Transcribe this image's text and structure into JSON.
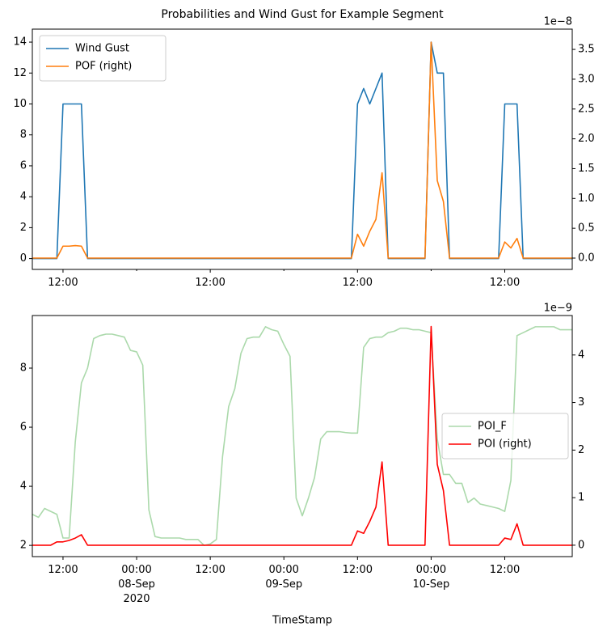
{
  "chart_data": [
    {
      "type": "line",
      "title": "Probabilities and Wind Gust for Example Segment",
      "x": [
        "2020-09-07 07:00",
        "2020-09-07 08:00",
        "2020-09-07 09:00",
        "2020-09-07 10:00",
        "2020-09-07 11:00",
        "2020-09-07 12:00",
        "2020-09-07 13:00",
        "2020-09-07 14:00",
        "2020-09-07 15:00",
        "2020-09-07 16:00",
        "2020-09-07 17:00",
        "2020-09-07 18:00",
        "2020-09-07 19:00",
        "2020-09-07 20:00",
        "2020-09-07 21:00",
        "2020-09-07 22:00",
        "2020-09-07 23:00",
        "2020-09-08 00:00",
        "2020-09-08 01:00",
        "2020-09-08 02:00",
        "2020-09-08 03:00",
        "2020-09-08 04:00",
        "2020-09-08 05:00",
        "2020-09-08 06:00",
        "2020-09-08 07:00",
        "2020-09-08 08:00",
        "2020-09-08 09:00",
        "2020-09-08 10:00",
        "2020-09-08 11:00",
        "2020-09-08 12:00",
        "2020-09-08 13:00",
        "2020-09-08 14:00",
        "2020-09-08 15:00",
        "2020-09-08 16:00",
        "2020-09-08 17:00",
        "2020-09-08 18:00",
        "2020-09-08 19:00",
        "2020-09-08 20:00",
        "2020-09-08 21:00",
        "2020-09-08 22:00",
        "2020-09-08 23:00",
        "2020-09-09 00:00",
        "2020-09-09 01:00",
        "2020-09-09 02:00",
        "2020-09-09 03:00",
        "2020-09-09 04:00",
        "2020-09-09 05:00",
        "2020-09-09 06:00",
        "2020-09-09 07:00",
        "2020-09-09 08:00",
        "2020-09-09 09:00",
        "2020-09-09 10:00",
        "2020-09-09 11:00",
        "2020-09-09 12:00",
        "2020-09-09 13:00",
        "2020-09-09 14:00",
        "2020-09-09 15:00",
        "2020-09-09 16:00",
        "2020-09-09 17:00",
        "2020-09-09 18:00",
        "2020-09-09 19:00",
        "2020-09-09 20:00",
        "2020-09-09 21:00",
        "2020-09-09 22:00",
        "2020-09-09 23:00",
        "2020-09-10 00:00",
        "2020-09-10 01:00",
        "2020-09-10 02:00",
        "2020-09-10 03:00",
        "2020-09-10 04:00",
        "2020-09-10 05:00",
        "2020-09-10 06:00",
        "2020-09-10 07:00",
        "2020-09-10 08:00",
        "2020-09-10 09:00",
        "2020-09-10 10:00",
        "2020-09-10 11:00",
        "2020-09-10 12:00",
        "2020-09-10 13:00",
        "2020-09-10 14:00",
        "2020-09-10 15:00",
        "2020-09-10 16:00",
        "2020-09-10 17:00",
        "2020-09-10 18:00",
        "2020-09-10 19:00",
        "2020-09-10 20:00",
        "2020-09-10 21:00",
        "2020-09-10 22:00",
        "2020-09-10 23:00"
      ],
      "series": [
        {
          "name": "Wind Gust",
          "color": "#1f77b4",
          "axis": "y",
          "values": [
            0,
            0,
            0,
            0,
            0,
            10,
            10,
            10,
            10,
            0,
            0,
            0,
            0,
            0,
            0,
            0,
            0,
            0,
            0,
            0,
            0,
            0,
            0,
            0,
            0,
            0,
            0,
            0,
            0,
            0,
            0,
            0,
            0,
            0,
            0,
            0,
            0,
            0,
            0,
            0,
            0,
            0,
            0,
            0,
            0,
            0,
            0,
            0,
            0,
            0,
            0,
            0,
            0,
            10,
            11,
            10,
            11,
            12,
            0,
            0,
            0,
            0,
            0,
            0,
            0,
            14,
            12,
            12,
            0,
            0,
            0,
            0,
            0,
            0,
            0,
            0,
            0,
            10,
            10,
            10,
            0,
            0,
            0,
            0,
            0,
            0,
            0,
            0,
            0
          ]
        },
        {
          "name": "POF (right)",
          "color": "#ff7f0e",
          "axis": "y2",
          "values": [
            0,
            0,
            0,
            0,
            0,
            0.2,
            0.2,
            0.21,
            0.2,
            0,
            0,
            0,
            0,
            0,
            0,
            0,
            0,
            0,
            0,
            0,
            0,
            0,
            0,
            0,
            0,
            0,
            0,
            0,
            0,
            0,
            0,
            0,
            0,
            0,
            0,
            0,
            0,
            0,
            0,
            0,
            0,
            0,
            0,
            0,
            0,
            0,
            0,
            0,
            0,
            0,
            0,
            0,
            0,
            0.4,
            0.2,
            0.45,
            0.65,
            1.43,
            0,
            0,
            0,
            0,
            0,
            0,
            0,
            3.62,
            1.3,
            0.95,
            0,
            0,
            0,
            0,
            0,
            0,
            0,
            0,
            0,
            0.27,
            0.17,
            0.33,
            0,
            0,
            0,
            0,
            0,
            0,
            0,
            0,
            0
          ]
        }
      ],
      "xlim": [
        "2020-09-07 07:00",
        "2020-09-10 23:00"
      ],
      "xticks": [
        {
          "value": "2020-09-07 12:00",
          "label": "12:00"
        },
        {
          "value": "2020-09-08 12:00",
          "label": "12:00"
        },
        {
          "value": "2020-09-09 12:00",
          "label": "12:00"
        },
        {
          "value": "2020-09-10 12:00",
          "label": "12:00"
        }
      ],
      "xticks_minor": [
        "2020-09-08 00:00",
        "2020-09-09 00:00",
        "2020-09-10 00:00"
      ],
      "ylim": [
        -0.7,
        14.84
      ],
      "yticks": [
        0,
        2,
        4,
        6,
        8,
        10,
        12,
        14
      ],
      "y2lim": [
        -0.19,
        3.84
      ],
      "y2ticks": [
        {
          "value": 0,
          "label": "0.0"
        },
        0.5,
        {
          "value": 1,
          "label": "1.0"
        },
        1.5,
        {
          "value": 2,
          "label": "2.0"
        },
        2.5,
        {
          "value": 3,
          "label": "3.0"
        },
        3.5
      ],
      "y2_offset_label": "1e−8",
      "legend": "upper left"
    },
    {
      "type": "line",
      "xlabel": "TimeStamp",
      "x": [
        "2020-09-07 07:00",
        "2020-09-07 08:00",
        "2020-09-07 09:00",
        "2020-09-07 10:00",
        "2020-09-07 11:00",
        "2020-09-07 12:00",
        "2020-09-07 13:00",
        "2020-09-07 14:00",
        "2020-09-07 15:00",
        "2020-09-07 16:00",
        "2020-09-07 17:00",
        "2020-09-07 18:00",
        "2020-09-07 19:00",
        "2020-09-07 20:00",
        "2020-09-07 21:00",
        "2020-09-07 22:00",
        "2020-09-07 23:00",
        "2020-09-08 00:00",
        "2020-09-08 01:00",
        "2020-09-08 02:00",
        "2020-09-08 03:00",
        "2020-09-08 04:00",
        "2020-09-08 05:00",
        "2020-09-08 06:00",
        "2020-09-08 07:00",
        "2020-09-08 08:00",
        "2020-09-08 09:00",
        "2020-09-08 10:00",
        "2020-09-08 11:00",
        "2020-09-08 12:00",
        "2020-09-08 13:00",
        "2020-09-08 14:00",
        "2020-09-08 15:00",
        "2020-09-08 16:00",
        "2020-09-08 17:00",
        "2020-09-08 18:00",
        "2020-09-08 19:00",
        "2020-09-08 20:00",
        "2020-09-08 21:00",
        "2020-09-08 22:00",
        "2020-09-08 23:00",
        "2020-09-09 00:00",
        "2020-09-09 01:00",
        "2020-09-09 02:00",
        "2020-09-09 03:00",
        "2020-09-09 04:00",
        "2020-09-09 05:00",
        "2020-09-09 06:00",
        "2020-09-09 07:00",
        "2020-09-09 08:00",
        "2020-09-09 09:00",
        "2020-09-09 10:00",
        "2020-09-09 11:00",
        "2020-09-09 12:00",
        "2020-09-09 13:00",
        "2020-09-09 14:00",
        "2020-09-09 15:00",
        "2020-09-09 16:00",
        "2020-09-09 17:00",
        "2020-09-09 18:00",
        "2020-09-09 19:00",
        "2020-09-09 20:00",
        "2020-09-09 21:00",
        "2020-09-09 22:00",
        "2020-09-09 23:00",
        "2020-09-10 00:00",
        "2020-09-10 01:00",
        "2020-09-10 02:00",
        "2020-09-10 03:00",
        "2020-09-10 04:00",
        "2020-09-10 05:00",
        "2020-09-10 06:00",
        "2020-09-10 07:00",
        "2020-09-10 08:00",
        "2020-09-10 09:00",
        "2020-09-10 10:00",
        "2020-09-10 11:00",
        "2020-09-10 12:00",
        "2020-09-10 13:00",
        "2020-09-10 14:00",
        "2020-09-10 15:00",
        "2020-09-10 16:00",
        "2020-09-10 17:00",
        "2020-09-10 18:00",
        "2020-09-10 19:00",
        "2020-09-10 20:00",
        "2020-09-10 21:00",
        "2020-09-10 22:00",
        "2020-09-10 23:00"
      ],
      "series": [
        {
          "name": "POI_F",
          "color": "#2ca02c",
          "alpha": 0.4,
          "axis": "y",
          "values": [
            3.05,
            2.95,
            3.25,
            3.15,
            3.05,
            2.25,
            2.25,
            5.5,
            7.5,
            8.0,
            9.0,
            9.1,
            9.15,
            9.15,
            9.1,
            9.05,
            8.6,
            8.55,
            8.1,
            3.2,
            2.3,
            2.25,
            2.25,
            2.25,
            2.25,
            2.2,
            2.2,
            2.2,
            2.0,
            2.05,
            2.2,
            5.0,
            6.7,
            7.3,
            8.5,
            9.0,
            9.05,
            9.05,
            9.4,
            9.3,
            9.25,
            8.8,
            8.4,
            3.6,
            3.0,
            3.6,
            4.3,
            5.6,
            5.85,
            5.85,
            5.85,
            5.82,
            5.8,
            5.8,
            8.7,
            9.0,
            9.05,
            9.05,
            9.2,
            9.25,
            9.35,
            9.35,
            9.3,
            9.3,
            9.25,
            9.2,
            5.6,
            4.4,
            4.4,
            4.1,
            4.1,
            3.45,
            3.6,
            3.4,
            3.35,
            3.3,
            3.25,
            3.15,
            4.2,
            9.1,
            9.2,
            9.3,
            9.4,
            9.4,
            9.4,
            9.4,
            9.3,
            9.3,
            9.3
          ]
        },
        {
          "name": "POI (right)",
          "color": "#ff0000",
          "axis": "y2",
          "values": [
            0,
            0,
            0,
            0,
            0.07,
            0.07,
            0.1,
            0.15,
            0.22,
            0,
            0,
            0,
            0,
            0,
            0,
            0,
            0,
            0,
            0,
            0,
            0,
            0,
            0,
            0,
            0,
            0,
            0,
            0,
            0,
            0,
            0,
            0,
            0,
            0,
            0,
            0,
            0,
            0,
            0,
            0,
            0,
            0,
            0,
            0,
            0,
            0,
            0,
            0,
            0,
            0,
            0,
            0,
            0,
            0.3,
            0.25,
            0.5,
            0.8,
            1.75,
            0,
            0,
            0,
            0,
            0,
            0,
            0,
            4.6,
            1.7,
            1.15,
            0,
            0,
            0,
            0,
            0,
            0,
            0,
            0,
            0,
            0.15,
            0.12,
            0.45,
            0,
            0,
            0,
            0,
            0,
            0,
            0,
            0,
            0
          ]
        }
      ],
      "xlim": [
        "2020-09-07 07:00",
        "2020-09-10 23:00"
      ],
      "xticks": [
        {
          "value": "2020-09-07 12:00",
          "label": "12:00"
        },
        {
          "value": "2020-09-08 00:00",
          "label": "00:00\n08-Sep\n2020"
        },
        {
          "value": "2020-09-08 12:00",
          "label": "12:00"
        },
        {
          "value": "2020-09-09 00:00",
          "label": "00:00\n09-Sep"
        },
        {
          "value": "2020-09-09 12:00",
          "label": "12:00"
        },
        {
          "value": "2020-09-10 00:00",
          "label": "00:00\n10-Sep"
        },
        {
          "value": "2020-09-10 12:00",
          "label": "12:00"
        }
      ],
      "ylim": [
        1.62,
        9.78
      ],
      "yticks": [
        2,
        4,
        6,
        8
      ],
      "y2lim": [
        -0.24,
        4.83
      ],
      "y2ticks": [
        0,
        1,
        2,
        3,
        4
      ],
      "y2_offset_label": "1e−9",
      "legend": "center right"
    }
  ]
}
